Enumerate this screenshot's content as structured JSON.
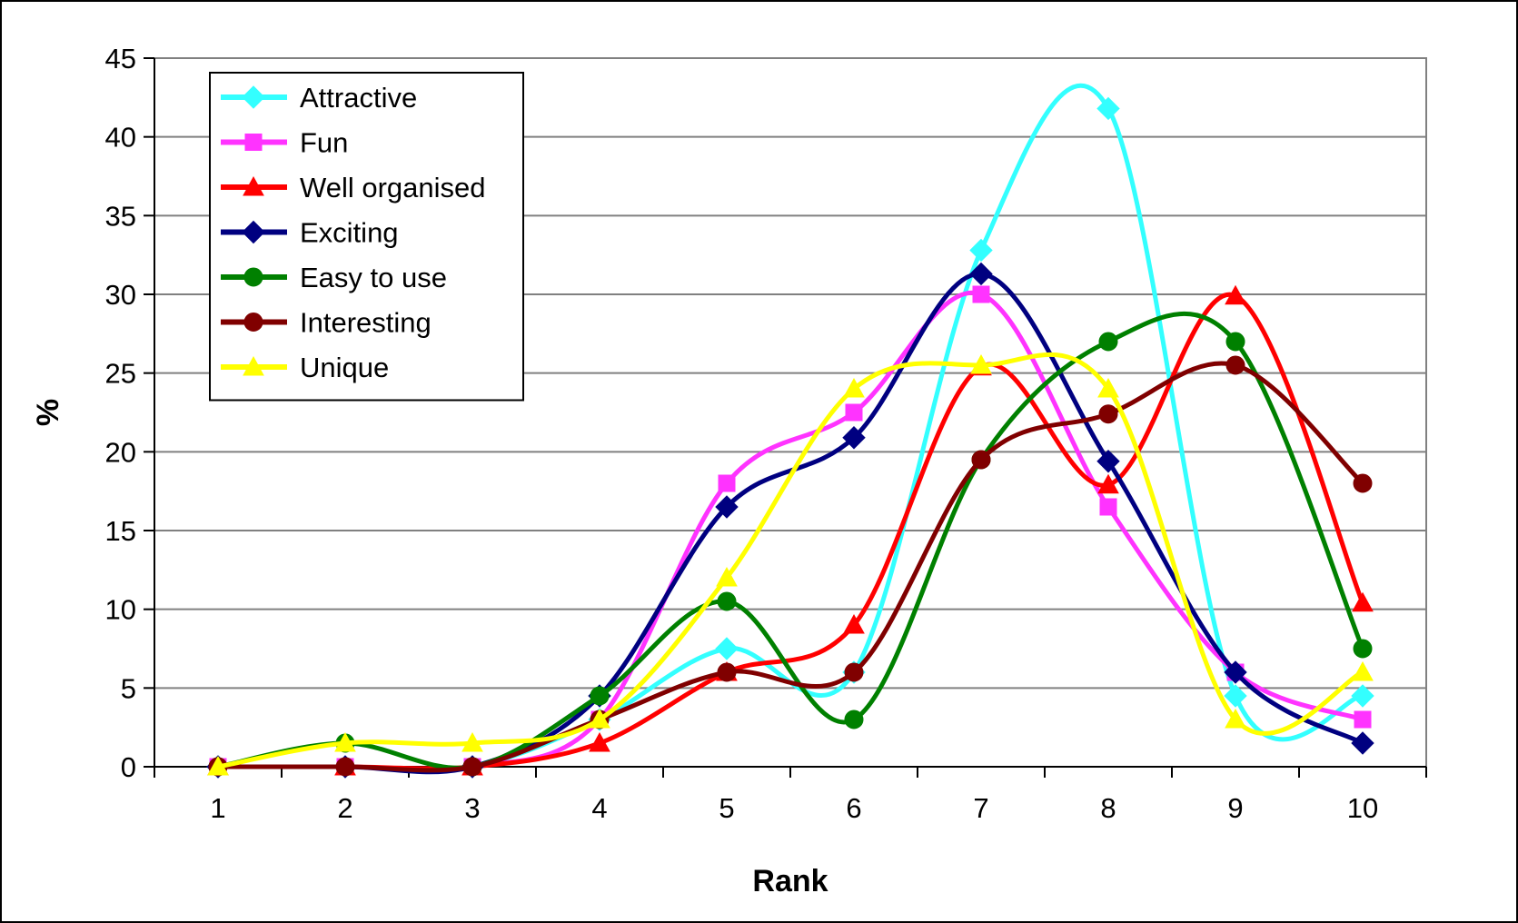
{
  "chart_data": {
    "type": "line",
    "title": "",
    "xlabel": "Rank",
    "ylabel": "%",
    "x": [
      1,
      2,
      3,
      4,
      5,
      6,
      7,
      8,
      9,
      10
    ],
    "xlim": [
      0.5,
      10.5
    ],
    "ylim": [
      0,
      45
    ],
    "yticks": [
      0,
      5,
      10,
      15,
      20,
      25,
      30,
      35,
      40,
      45
    ],
    "grid": "horizontal",
    "legend_position": "top-left",
    "series": [
      {
        "name": "Attractive",
        "color": "#33ffff",
        "marker": "diamond",
        "values": [
          0,
          0,
          0,
          3,
          7.5,
          6,
          32.8,
          41.8,
          4.5,
          4.5
        ]
      },
      {
        "name": "Fun",
        "color": "#ff33ff",
        "marker": "square",
        "values": [
          0,
          0,
          0,
          3,
          18,
          22.5,
          30,
          16.5,
          6,
          3
        ]
      },
      {
        "name": "Well organised",
        "color": "#ff0000",
        "marker": "triangle",
        "values": [
          0,
          0,
          0,
          1.5,
          6,
          9,
          25.4,
          17.9,
          29.9,
          10.4
        ]
      },
      {
        "name": "Exciting",
        "color": "#000080",
        "marker": "diamond",
        "values": [
          0,
          0,
          0,
          4.5,
          16.5,
          20.9,
          31.3,
          19.4,
          6,
          1.5
        ]
      },
      {
        "name": "Easy to use",
        "color": "#008000",
        "marker": "circle",
        "values": [
          0,
          1.5,
          0,
          4.5,
          10.5,
          3,
          19.5,
          27,
          27,
          7.5
        ]
      },
      {
        "name": "Interesting",
        "color": "#800000",
        "marker": "circle",
        "values": [
          0,
          0,
          0,
          3,
          6,
          6,
          19.5,
          22.4,
          25.5,
          18
        ]
      },
      {
        "name": "Unique",
        "color": "#ffff00",
        "marker": "triangle",
        "values": [
          0,
          1.5,
          1.5,
          3,
          12,
          24,
          25.5,
          24,
          3,
          6
        ]
      }
    ]
  }
}
